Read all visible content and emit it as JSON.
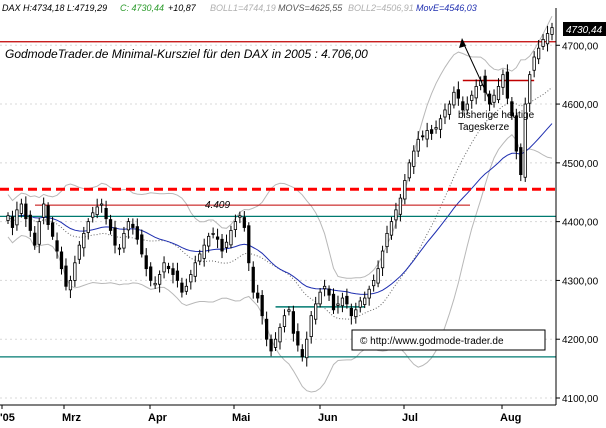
{
  "header": {
    "parts": [
      {
        "text": "DAX H:4734,18 L:4719,29",
        "color": "#000000"
      },
      {
        "text": "C: 4730,44",
        "color": "#2a9a2a"
      },
      {
        "text": "+10,87",
        "color": "#000000"
      },
      {
        "text": "BOLL1=4744,19",
        "color": "#b0b0b0"
      },
      {
        "text": "MOVS=4625,55",
        "color": "#555555"
      },
      {
        "text": "BOLL2=4506,91",
        "color": "#b0b0b0"
      },
      {
        "text": "MovE=4546,03",
        "color": "#1f2fb0"
      }
    ]
  },
  "chart_data": {
    "type": "candlestick",
    "title": "GodmodeTrader.de Minimal-Kursziel für den DAX in 2005 : 4.706,00",
    "ylim": [
      4100,
      4760
    ],
    "yticks": [
      4100,
      4200,
      4300,
      4400,
      4500,
      4600,
      4700
    ],
    "ytick_labels": [
      "4100,00",
      "4200,00",
      "4300,00",
      "4400,00",
      "4500,00",
      "4600,00",
      "4700,00"
    ],
    "xlabels": [
      "'05",
      "Mrz",
      "Apr",
      "Mai",
      "Jun",
      "Jul",
      "Aug"
    ],
    "last_value_label": "4730,44",
    "annotation": "bisherige heutige Tageskerze",
    "level_label": "4.409",
    "watermark": "© http://www.godmode-trader.de",
    "closes": [
      4410,
      4390,
      4420,
      4430,
      4405,
      4385,
      4360,
      4400,
      4430,
      4395,
      4375,
      4350,
      4320,
      4290,
      4300,
      4330,
      4360,
      4380,
      4400,
      4415,
      4425,
      4430,
      4405,
      4385,
      4360,
      4355,
      4380,
      4400,
      4390,
      4370,
      4345,
      4320,
      4300,
      4295,
      4310,
      4330,
      4320,
      4310,
      4300,
      4280,
      4290,
      4310,
      4330,
      4345,
      4360,
      4375,
      4380,
      4370,
      4350,
      4365,
      4385,
      4400,
      4410,
      4390,
      4330,
      4280,
      4270,
      4240,
      4200,
      4180,
      4200,
      4220,
      4240,
      4250,
      4210,
      4190,
      4170,
      4200,
      4240,
      4260,
      4280,
      4290,
      4275,
      4250,
      4260,
      4270,
      4260,
      4240,
      4250,
      4265,
      4270,
      4285,
      4300,
      4320,
      4350,
      4380,
      4400,
      4420,
      4440,
      4470,
      4500,
      4520,
      4540,
      4545,
      4555,
      4550,
      4560,
      4575,
      4590,
      4600,
      4620,
      4610,
      4590,
      4600,
      4615,
      4630,
      4640,
      4620,
      4600,
      4615,
      4630,
      4650,
      4610,
      4580,
      4520,
      4480,
      4600,
      4650,
      4680,
      4695,
      4710,
      4720,
      4730
    ],
    "series": [
      {
        "name": "BOLL1",
        "color": "#aaaaaa"
      },
      {
        "name": "MOVS",
        "color": "#555555"
      },
      {
        "name": "BOLL2",
        "color": "#aaaaaa"
      },
      {
        "name": "MovE",
        "color": "#1f2fb0"
      }
    ],
    "levels": [
      {
        "value": 4706,
        "color": "#c00000",
        "style": "solid"
      },
      {
        "value": 4455,
        "color": "#ff0000",
        "style": "dashed"
      },
      {
        "value": 4428,
        "color": "#c00000",
        "style": "solid"
      },
      {
        "value": 4409,
        "color": "#007a70",
        "style": "solid"
      },
      {
        "value": 4170,
        "color": "#007a70",
        "style": "solid"
      }
    ],
    "segments": [
      {
        "value": 4255,
        "from": 60,
        "to": 80,
        "color": "#007a70"
      },
      {
        "value": 4640,
        "from": 102,
        "to": 118,
        "color": "#c00000"
      }
    ]
  }
}
